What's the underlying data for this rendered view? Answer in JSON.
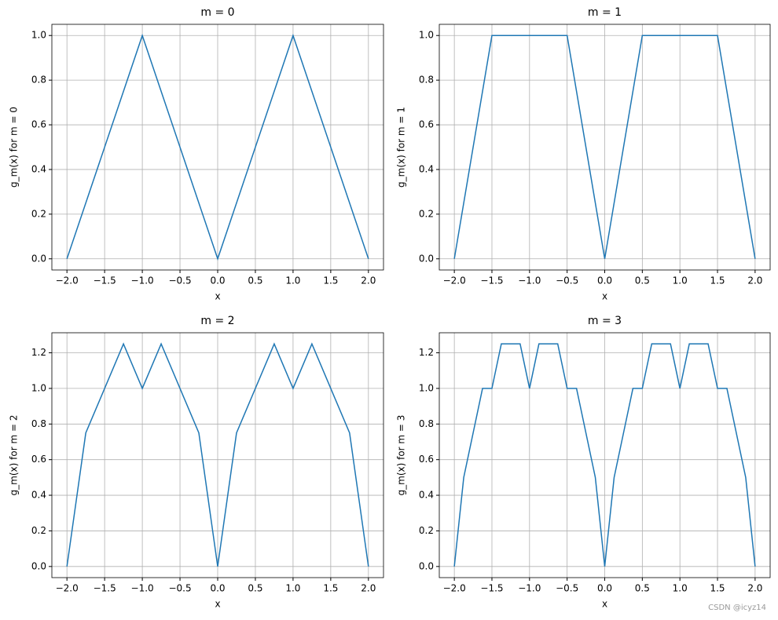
{
  "chart_data": [
    {
      "type": "line",
      "title": "m = 0",
      "xlabel": "x",
      "ylabel": "g_m(x) for m = 0",
      "grid": true,
      "x": [
        -2,
        -1,
        0,
        1,
        2
      ],
      "series": [
        {
          "color": "#1f77b4",
          "values": [
            0,
            1,
            0,
            1,
            0
          ]
        }
      ],
      "xlim": [
        -2.2,
        2.2
      ],
      "ylim": [
        -0.05,
        1.05
      ],
      "xticks": [
        {
          "value": -2,
          "label": "−2.0"
        },
        {
          "value": -1.5,
          "label": "−1.5"
        },
        {
          "value": -1,
          "label": "−1.0"
        },
        {
          "value": -0.5,
          "label": "−0.5"
        },
        {
          "value": 0,
          "label": "0.0"
        },
        {
          "value": 0.5,
          "label": "0.5"
        },
        {
          "value": 1,
          "label": "1.0"
        },
        {
          "value": 1.5,
          "label": "1.5"
        },
        {
          "value": 2,
          "label": "2.0"
        }
      ],
      "yticks": [
        {
          "value": 0,
          "label": "0.0"
        },
        {
          "value": 0.2,
          "label": "0.2"
        },
        {
          "value": 0.4,
          "label": "0.4"
        },
        {
          "value": 0.6,
          "label": "0.6"
        },
        {
          "value": 0.8,
          "label": "0.8"
        },
        {
          "value": 1,
          "label": "1.0"
        }
      ]
    },
    {
      "type": "line",
      "title": "m = 1",
      "xlabel": "x",
      "ylabel": "g_m(x) for m = 1",
      "grid": true,
      "x": [
        -2,
        -1.5,
        -0.5,
        0,
        0.5,
        1.5,
        2
      ],
      "series": [
        {
          "color": "#1f77b4",
          "values": [
            0,
            1,
            1,
            0,
            1,
            1,
            0
          ]
        }
      ],
      "xlim": [
        -2.2,
        2.2
      ],
      "ylim": [
        -0.05,
        1.05
      ],
      "xticks": [
        {
          "value": -2,
          "label": "−2.0"
        },
        {
          "value": -1.5,
          "label": "−1.5"
        },
        {
          "value": -1,
          "label": "−1.0"
        },
        {
          "value": -0.5,
          "label": "−0.5"
        },
        {
          "value": 0,
          "label": "0.0"
        },
        {
          "value": 0.5,
          "label": "0.5"
        },
        {
          "value": 1,
          "label": "1.0"
        },
        {
          "value": 1.5,
          "label": "1.5"
        },
        {
          "value": 2,
          "label": "2.0"
        }
      ],
      "yticks": [
        {
          "value": 0,
          "label": "0.0"
        },
        {
          "value": 0.2,
          "label": "0.2"
        },
        {
          "value": 0.4,
          "label": "0.4"
        },
        {
          "value": 0.6,
          "label": "0.6"
        },
        {
          "value": 0.8,
          "label": "0.8"
        },
        {
          "value": 1,
          "label": "1.0"
        }
      ]
    },
    {
      "type": "line",
      "title": "m = 2",
      "xlabel": "x",
      "ylabel": "g_m(x) for m = 2",
      "grid": true,
      "x": [
        -2,
        -1.75,
        -1.25,
        -1,
        -0.75,
        -0.25,
        0,
        0.25,
        0.75,
        1,
        1.25,
        1.75,
        2
      ],
      "series": [
        {
          "color": "#1f77b4",
          "values": [
            0,
            0.75,
            1.25,
            1,
            1.25,
            0.75,
            0,
            0.75,
            1.25,
            1,
            1.25,
            0.75,
            0
          ]
        }
      ],
      "xlim": [
        -2.2,
        2.2
      ],
      "ylim": [
        -0.0625,
        1.3125
      ],
      "xticks": [
        {
          "value": -2,
          "label": "−2.0"
        },
        {
          "value": -1.5,
          "label": "−1.5"
        },
        {
          "value": -1,
          "label": "−1.0"
        },
        {
          "value": -0.5,
          "label": "−0.5"
        },
        {
          "value": 0,
          "label": "0.0"
        },
        {
          "value": 0.5,
          "label": "0.5"
        },
        {
          "value": 1,
          "label": "1.0"
        },
        {
          "value": 1.5,
          "label": "1.5"
        },
        {
          "value": 2,
          "label": "2.0"
        }
      ],
      "yticks": [
        {
          "value": 0,
          "label": "0.0"
        },
        {
          "value": 0.2,
          "label": "0.2"
        },
        {
          "value": 0.4,
          "label": "0.4"
        },
        {
          "value": 0.6,
          "label": "0.6"
        },
        {
          "value": 0.8,
          "label": "0.8"
        },
        {
          "value": 1,
          "label": "1.0"
        },
        {
          "value": 1.2,
          "label": "1.2"
        }
      ]
    },
    {
      "type": "line",
      "title": "m = 3",
      "xlabel": "x",
      "ylabel": "g_m(x) for m = 3",
      "grid": true,
      "x": [
        -2,
        -1.875,
        -1.625,
        -1.5,
        -1.375,
        -1.125,
        -1,
        -0.875,
        -0.625,
        -0.5,
        -0.375,
        -0.125,
        0,
        0.125,
        0.375,
        0.5,
        0.625,
        0.875,
        1,
        1.125,
        1.375,
        1.5,
        1.625,
        1.875,
        2
      ],
      "series": [
        {
          "color": "#1f77b4",
          "values": [
            0,
            0.5,
            1,
            1,
            1.25,
            1.25,
            1,
            1.25,
            1.25,
            1,
            1,
            0.5,
            0,
            0.5,
            1,
            1,
            1.25,
            1.25,
            1,
            1.25,
            1.25,
            1,
            1,
            0.5,
            0
          ]
        }
      ],
      "xlim": [
        -2.2,
        2.2
      ],
      "ylim": [
        -0.0625,
        1.3125
      ],
      "xticks": [
        {
          "value": -2,
          "label": "−2.0"
        },
        {
          "value": -1.5,
          "label": "−1.5"
        },
        {
          "value": -1,
          "label": "−1.0"
        },
        {
          "value": -0.5,
          "label": "−0.5"
        },
        {
          "value": 0,
          "label": "0.0"
        },
        {
          "value": 0.5,
          "label": "0.5"
        },
        {
          "value": 1,
          "label": "1.0"
        },
        {
          "value": 1.5,
          "label": "1.5"
        },
        {
          "value": 2,
          "label": "2.0"
        }
      ],
      "yticks": [
        {
          "value": 0,
          "label": "0.0"
        },
        {
          "value": 0.2,
          "label": "0.2"
        },
        {
          "value": 0.4,
          "label": "0.4"
        },
        {
          "value": 0.6,
          "label": "0.6"
        },
        {
          "value": 0.8,
          "label": "0.8"
        },
        {
          "value": 1,
          "label": "1.0"
        },
        {
          "value": 1.2,
          "label": "1.2"
        }
      ]
    }
  ],
  "watermark": "CSDN @icyz14"
}
